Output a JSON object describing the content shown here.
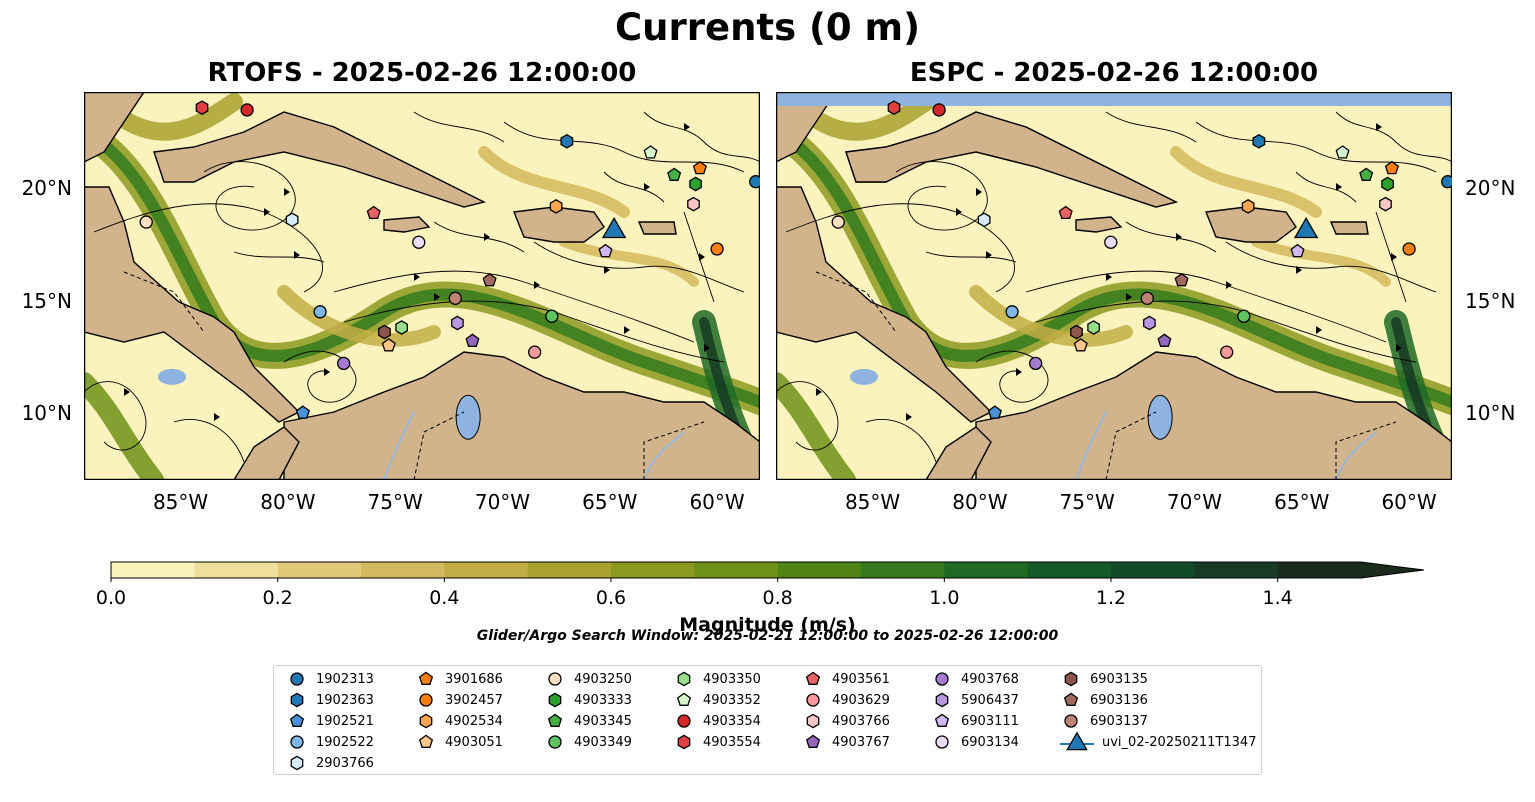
{
  "title": "Currents (0 m)",
  "panels": [
    {
      "name": "rtofs",
      "title": "RTOFS - 2025-02-26 12:00:00"
    },
    {
      "name": "espc",
      "title": "ESPC - 2025-02-26 12:00:00"
    }
  ],
  "lon_ticks": [
    "85°W",
    "80°W",
    "75°W",
    "70°W",
    "65°W",
    "60°W"
  ],
  "lat_ticks": [
    "20°N",
    "15°N",
    "10°N"
  ],
  "colorbar": {
    "label": "Magnitude (m/s)",
    "ticks": [
      "0.0",
      "0.2",
      "0.4",
      "0.6",
      "0.8",
      "1.0",
      "1.2",
      "1.4"
    ],
    "range": [
      0,
      1.5
    ],
    "extend": "max",
    "colors": [
      "#fbf3bd",
      "#efdf9c",
      "#e2c97a",
      "#d3b95d",
      "#c2ad45",
      "#a7a130",
      "#8c9920",
      "#6e9018",
      "#508516",
      "#357b1d",
      "#1f6a25",
      "#145a29",
      "#124b29",
      "#163a24",
      "#1a2b1c"
    ]
  },
  "search_window": "Glider/Argo Search Window: 2025-02-21 12:00:00 to 2025-02-26 12:00:00",
  "map_colors": {
    "land": "#d2b48c",
    "water_body": "#8fb3e0",
    "river": "#9bb6d8",
    "ocean_low": "#fbf3bd"
  },
  "legend": [
    {
      "label": "1902313",
      "marker": "circle",
      "color": "#1f77b4"
    },
    {
      "label": "1902363",
      "marker": "hexagon",
      "color": "#1f77b4"
    },
    {
      "label": "1902521",
      "marker": "pentagon",
      "color": "#4a90d9"
    },
    {
      "label": "1902522",
      "marker": "circle",
      "color": "#7fb6e6"
    },
    {
      "label": "2903766",
      "marker": "hexagon",
      "color": "#d6ecfb"
    },
    {
      "label": "3901686",
      "marker": "pentagon",
      "color": "#ff7f0e"
    },
    {
      "label": "3902457",
      "marker": "circle",
      "color": "#ff7f0e"
    },
    {
      "label": "4902534",
      "marker": "hexagon",
      "color": "#ffa54f"
    },
    {
      "label": "4903051",
      "marker": "pentagon",
      "color": "#ffc58a"
    },
    {
      "label": "4903250",
      "marker": "circle",
      "color": "#ffe0c2"
    },
    {
      "label": "4903333",
      "marker": "hexagon",
      "color": "#2ca02c"
    },
    {
      "label": "4903345",
      "marker": "pentagon",
      "color": "#43b043"
    },
    {
      "label": "4903349",
      "marker": "circle",
      "color": "#5fc35f"
    },
    {
      "label": "4903350",
      "marker": "hexagon",
      "color": "#98df8a"
    },
    {
      "label": "4903352",
      "marker": "pentagon",
      "color": "#d4f7cc"
    },
    {
      "label": "4903354",
      "marker": "circle",
      "color": "#d62728"
    },
    {
      "label": "4903554",
      "marker": "hexagon",
      "color": "#e04040"
    },
    {
      "label": "4903561",
      "marker": "pentagon",
      "color": "#e86363"
    },
    {
      "label": "4903629",
      "marker": "circle",
      "color": "#f59a9a"
    },
    {
      "label": "4903766",
      "marker": "hexagon",
      "color": "#fcc4c4"
    },
    {
      "label": "4903767",
      "marker": "pentagon",
      "color": "#9467bd"
    },
    {
      "label": "4903768",
      "marker": "circle",
      "color": "#a57ad0"
    },
    {
      "label": "5906437",
      "marker": "hexagon",
      "color": "#b896e0"
    },
    {
      "label": "6903111",
      "marker": "pentagon",
      "color": "#d2b8f0"
    },
    {
      "label": "6903134",
      "marker": "circle",
      "color": "#ecdcfc"
    },
    {
      "label": "6903135",
      "marker": "hexagon",
      "color": "#8c564b"
    },
    {
      "label": "6903136",
      "marker": "pentagon",
      "color": "#a26a5c"
    },
    {
      "label": "6903137",
      "marker": "circle",
      "color": "#bd8474"
    },
    {
      "label": "uvi_02-20250211T1347",
      "marker": "triangle",
      "color": "#1f77b4"
    }
  ],
  "platform_positions": [
    {
      "id": "1902313",
      "lon": -58.2,
      "lat": 20.3
    },
    {
      "id": "1902363",
      "lon": -67.0,
      "lat": 22.1
    },
    {
      "id": "1902521",
      "lon": -79.3,
      "lat": 10.0
    },
    {
      "id": "1902522",
      "lon": -78.5,
      "lat": 14.5
    },
    {
      "id": "2903766",
      "lon": -79.8,
      "lat": 18.6
    },
    {
      "id": "3901686",
      "lon": -60.8,
      "lat": 20.9
    },
    {
      "id": "3902457",
      "lon": -60.0,
      "lat": 17.3
    },
    {
      "id": "4902534",
      "lon": -67.5,
      "lat": 19.2
    },
    {
      "id": "4903051",
      "lon": -75.3,
      "lat": 13.0
    },
    {
      "id": "4903250",
      "lon": -86.6,
      "lat": 18.5
    },
    {
      "id": "4903333",
      "lon": -61.0,
      "lat": 20.2
    },
    {
      "id": "4903345",
      "lon": -62.0,
      "lat": 20.6
    },
    {
      "id": "4903349",
      "lon": -67.7,
      "lat": 14.3
    },
    {
      "id": "4903350",
      "lon": -74.7,
      "lat": 13.8
    },
    {
      "id": "4903352",
      "lon": -63.1,
      "lat": 21.6
    },
    {
      "id": "4903354",
      "lon": -81.9,
      "lat": 23.5
    },
    {
      "id": "4903554",
      "lon": -84.0,
      "lat": 23.6
    },
    {
      "id": "4903561",
      "lon": -76.0,
      "lat": 18.9
    },
    {
      "id": "4903629",
      "lon": -68.5,
      "lat": 12.7
    },
    {
      "id": "4903766",
      "lon": -61.1,
      "lat": 19.3
    },
    {
      "id": "4903767",
      "lon": -71.4,
      "lat": 13.2
    },
    {
      "id": "4903768",
      "lon": -77.4,
      "lat": 12.2
    },
    {
      "id": "5906437",
      "lon": -72.1,
      "lat": 14.0
    },
    {
      "id": "6903111",
      "lon": -65.2,
      "lat": 17.2
    },
    {
      "id": "6903134",
      "lon": -73.9,
      "lat": 17.6
    },
    {
      "id": "6903135",
      "lon": -75.5,
      "lat": 13.6
    },
    {
      "id": "6903136",
      "lon": -70.6,
      "lat": 15.9
    },
    {
      "id": "6903137",
      "lon": -72.2,
      "lat": 15.1
    },
    {
      "id": "uvi_02-20250211T1347",
      "lon": -64.8,
      "lat": 18.1
    }
  ]
}
